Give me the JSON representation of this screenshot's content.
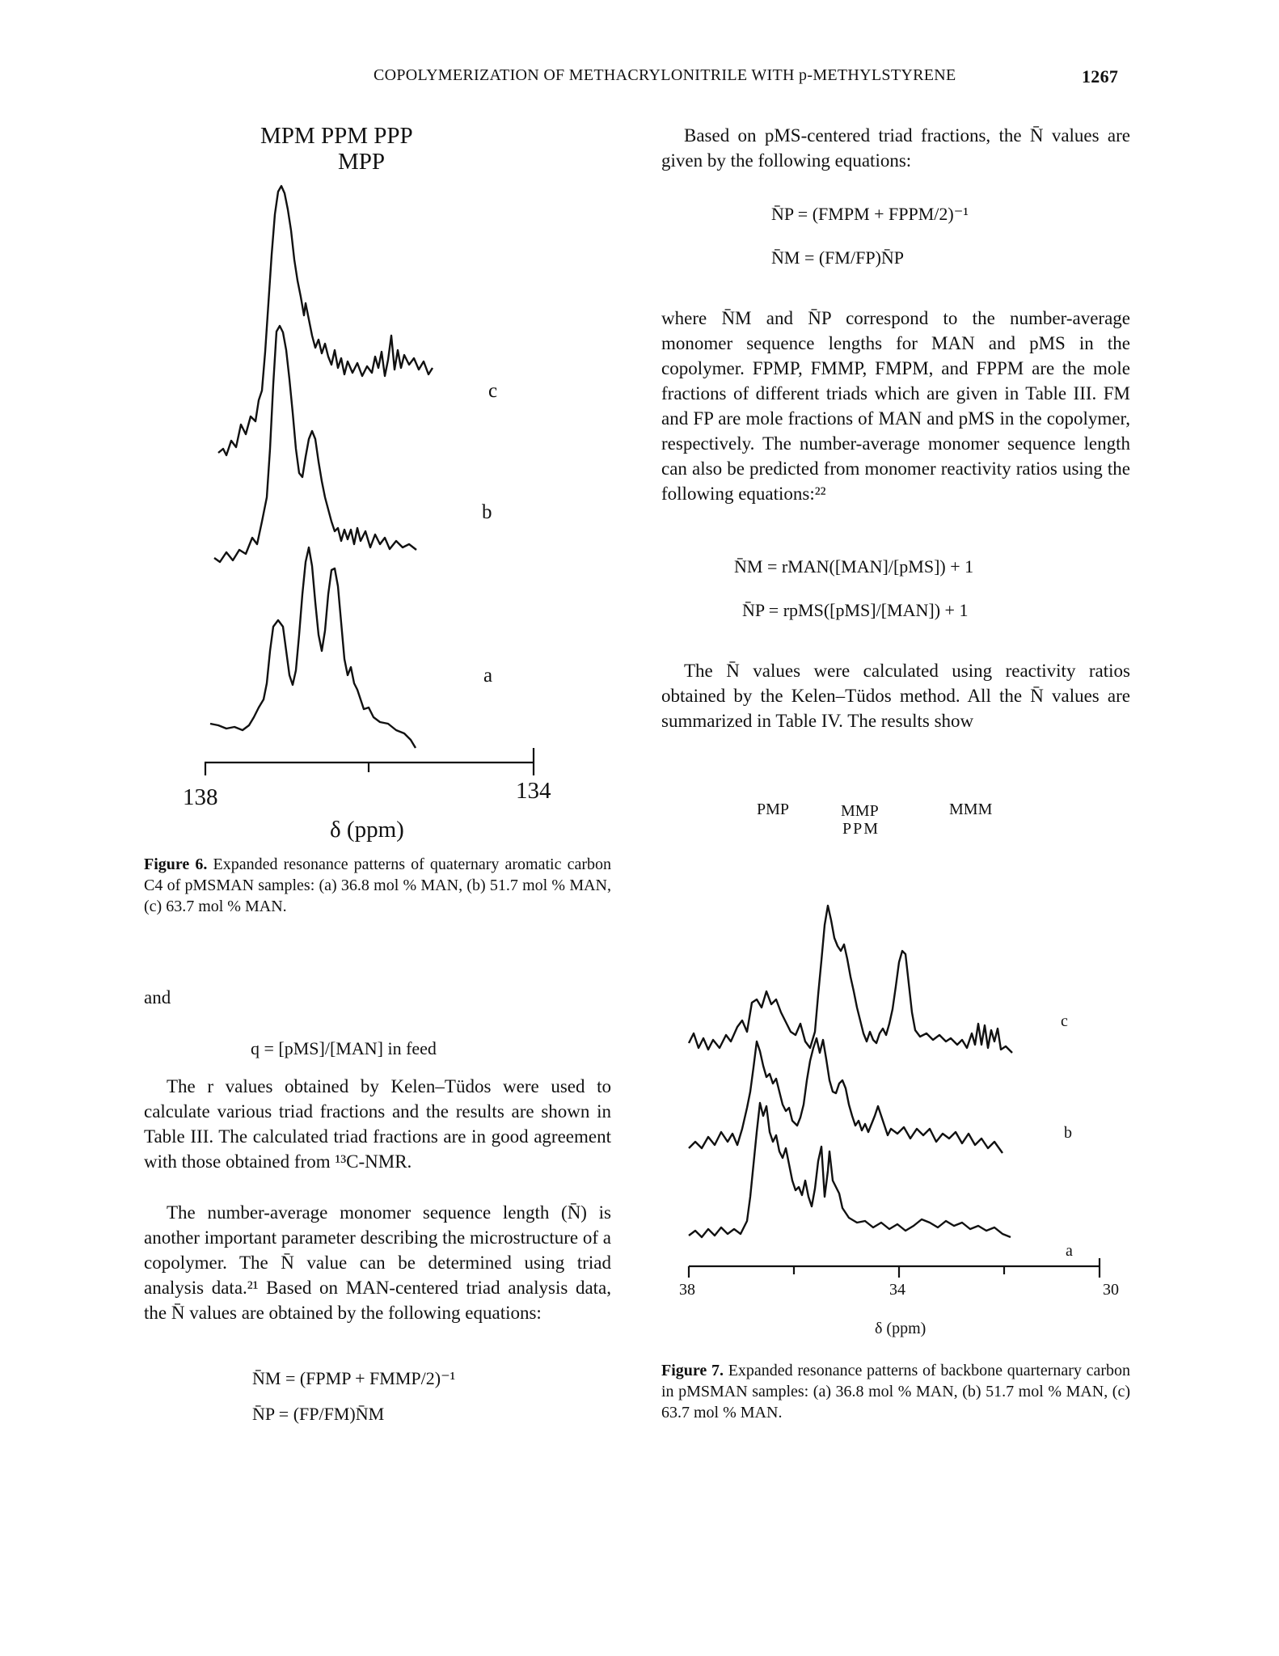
{
  "header": {
    "running_title": "COPOLYMERIZATION OF METHACRYLONITRILE WITH p-METHYLSTYRENE",
    "page_number": "1267"
  },
  "figure6": {
    "peak_labels_row1": "MPM  PPM  PPP",
    "peak_labels_row2": "MPP",
    "trace_labels": [
      "c",
      "b",
      "a"
    ],
    "axis_left": "138",
    "axis_right": "134",
    "axis_label": "δ (ppm)",
    "caption_label": "Figure 6.",
    "caption_text": "Expanded resonance patterns of quaternary aromatic carbon C4 of pMSMAN samples: (a) 36.8 mol % MAN, (b) 51.7 mol % MAN, (c) 63.7 mol % MAN."
  },
  "figure7": {
    "peak_pmp": "PMP",
    "peak_mmp": "MMP",
    "peak_ppm": "PPM",
    "peak_mmm": "MMM",
    "trace_labels": [
      "c",
      "b",
      "a"
    ],
    "axis_ticks": [
      "38",
      "34",
      "30"
    ],
    "axis_label": "δ (ppm)",
    "caption_label": "Figure 7.",
    "caption_text": "Expanded resonance patterns of backbone quarternary carbon in pMSMAN samples: (a) 36.8 mol % MAN, (b) 51.7 mol % MAN, (c) 63.7 mol % MAN."
  },
  "left_column": {
    "and": "and",
    "eq_q": "q = [pMS]/[MAN] in feed",
    "para1": "The r values obtained by Kelen–Tüdos were used to calculate various triad fractions and the results are shown in Table III. The calculated triad fractions are in good agreement with those obtained from ¹³C-NMR.",
    "para2": "The number-average monomer sequence length (N̄) is another important parameter describing the microstructure of a copolymer. The N̄ value can be determined using triad analysis data.²¹ Based on MAN-centered triad analysis data, the N̄ values are obtained by the following equations:",
    "eq_nm": "N̄M = (FPMP + FMMP/2)⁻¹",
    "eq_np": "N̄P = (FP/FM)N̄M"
  },
  "right_column": {
    "para1": "Based on pMS-centered triad fractions, the N̄ values are given by the following equations:",
    "eq1": "N̄P = (FMPM + FPPM/2)⁻¹",
    "eq2": "N̄M = (FM/FP)N̄P",
    "para2": "where N̄M and N̄P correspond to the number-average monomer sequence lengths for MAN and pMS in the copolymer. FPMP, FMMP, FMPM, and FPPM are the mole fractions of different triads which are given in Table III. FM and FP are mole fractions of MAN and pMS in the copolymer, respectively. The number-average monomer sequence length can also be predicted from monomer reactivity ratios using the following equations:²²",
    "eq3": "N̄M = rMAN([MAN]/[pMS]) + 1",
    "eq4": "N̄P = rpMS([pMS]/[MAN]) + 1",
    "para3": "The N̄ values were calculated using reactivity ratios obtained by the Kelen–Tüdos method. All the N̄ values are summarized in Table IV. The results show"
  }
}
